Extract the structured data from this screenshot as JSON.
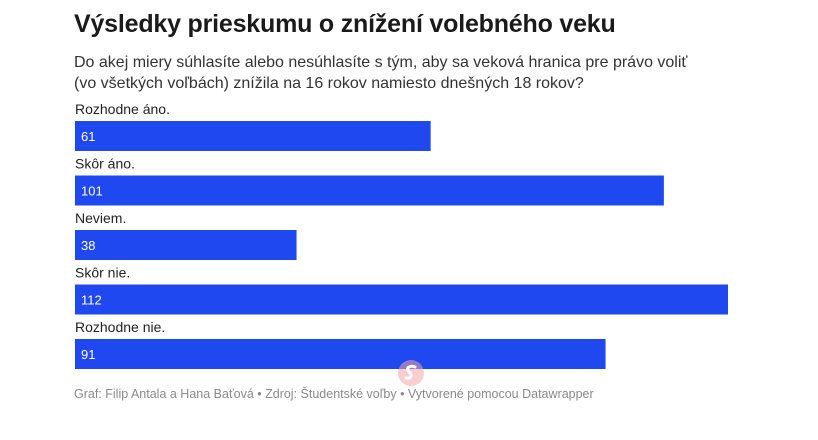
{
  "header": {
    "title": "Výsledky prieskumu o znížení volebného veku",
    "subtitle": "Do akej miery súhlasíte alebo nesúhlasíte s tým, aby sa veková hranica pre právo voliť (vo všetkých voľbách) znížila na 16 rokov namiesto dnešných 18 rokov?"
  },
  "chart_data": {
    "type": "bar",
    "orientation": "horizontal",
    "categories": [
      "Rozhodne áno.",
      "Skôr áno.",
      "Neviem.",
      "Skôr nie.",
      "Rozhodne nie."
    ],
    "values": [
      61,
      101,
      38,
      112,
      91
    ],
    "bar_color": "#1f48f0",
    "value_label_color": "#ffffff",
    "xlim": [
      0,
      112
    ]
  },
  "footer": {
    "text": "Graf: Filip Antala a Hana Baťová • Zdroj: Študentské voľby • Vytvorené pomocou Datawrapper"
  }
}
